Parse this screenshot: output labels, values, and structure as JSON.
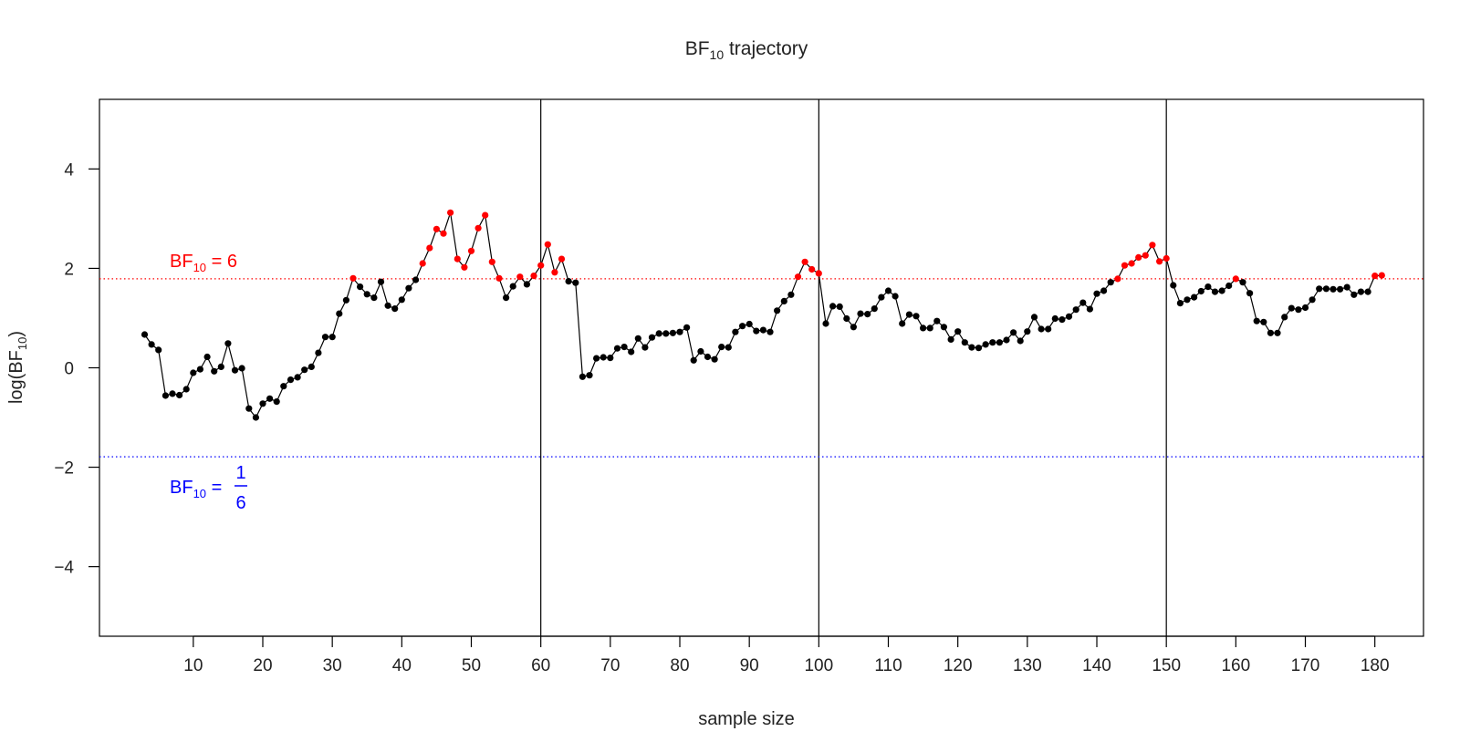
{
  "chart_data": {
    "type": "line",
    "title_main": "BF",
    "title_sub": "10",
    "title_rest": " trajectory",
    "xlabel": "sample size",
    "ylabel_main": "log(BF",
    "ylabel_sub": "10",
    "ylabel_end": ")",
    "xlim": [
      -3.5,
      187
    ],
    "ylim": [
      -5.4,
      5.4
    ],
    "xticks": [
      10,
      20,
      30,
      40,
      50,
      60,
      70,
      80,
      90,
      100,
      110,
      120,
      130,
      140,
      150,
      160,
      170,
      180
    ],
    "yticks": [
      -4,
      -2,
      0,
      2,
      4
    ],
    "ytick_labels": [
      "−4",
      "−2",
      "0",
      "2",
      "4"
    ],
    "vlines": [
      60,
      100,
      150
    ],
    "upper_threshold": {
      "value": 1.79,
      "label_main": "BF",
      "label_sub": "10",
      "label_rest": " = 6",
      "color": "#ff0000"
    },
    "lower_threshold": {
      "value": -1.79,
      "label_main": "BF",
      "label_sub": "10",
      "label_eq": " = ",
      "frac_num": "1",
      "frac_den": "6",
      "color": "#0000ff"
    },
    "point_color_default": "#000000",
    "point_color_above": "#ff0000",
    "x_start": 3,
    "y": [
      0.67,
      0.47,
      0.36,
      -0.56,
      -0.52,
      -0.55,
      -0.43,
      -0.1,
      -0.03,
      0.22,
      -0.07,
      0.02,
      0.49,
      -0.05,
      -0.01,
      -0.82,
      -1.0,
      -0.72,
      -0.62,
      -0.68,
      -0.37,
      -0.24,
      -0.19,
      -0.04,
      0.02,
      0.3,
      0.62,
      0.62,
      1.09,
      1.36,
      1.8,
      1.63,
      1.48,
      1.41,
      1.73,
      1.25,
      1.19,
      1.37,
      1.6,
      1.77,
      2.1,
      2.41,
      2.79,
      2.7,
      3.12,
      2.19,
      2.02,
      2.35,
      2.81,
      3.07,
      2.13,
      1.8,
      1.41,
      1.64,
      1.83,
      1.68,
      1.85,
      2.06,
      2.48,
      1.92,
      2.19,
      1.74,
      1.71,
      -0.18,
      -0.15,
      0.19,
      0.21,
      0.2,
      0.39,
      0.42,
      0.32,
      0.59,
      0.41,
      0.61,
      0.69,
      0.69,
      0.7,
      0.72,
      0.81,
      0.15,
      0.33,
      0.22,
      0.17,
      0.42,
      0.41,
      0.72,
      0.84,
      0.88,
      0.74,
      0.76,
      0.72,
      1.15,
      1.34,
      1.47,
      1.83,
      2.13,
      1.98,
      1.9,
      0.89,
      1.24,
      1.23,
      0.99,
      0.82,
      1.09,
      1.08,
      1.19,
      1.42,
      1.55,
      1.44,
      0.89,
      1.07,
      1.04,
      0.8,
      0.8,
      0.94,
      0.82,
      0.57,
      0.73,
      0.51,
      0.41,
      0.4,
      0.47,
      0.51,
      0.51,
      0.56,
      0.71,
      0.54,
      0.73,
      1.02,
      0.78,
      0.78,
      0.99,
      0.97,
      1.03,
      1.17,
      1.31,
      1.18,
      1.49,
      1.55,
      1.72,
      1.79,
      2.06,
      2.1,
      2.22,
      2.26,
      2.47,
      2.14,
      2.2,
      1.66,
      1.3,
      1.37,
      1.42,
      1.54,
      1.63,
      1.53,
      1.55,
      1.65,
      1.79,
      1.72,
      1.5,
      0.94,
      0.92,
      0.7,
      0.7,
      1.02,
      1.2,
      1.17,
      1.21,
      1.37,
      1.59,
      1.59,
      1.58,
      1.58,
      1.62,
      1.47,
      1.53,
      1.53,
      1.85,
      1.86
    ]
  }
}
